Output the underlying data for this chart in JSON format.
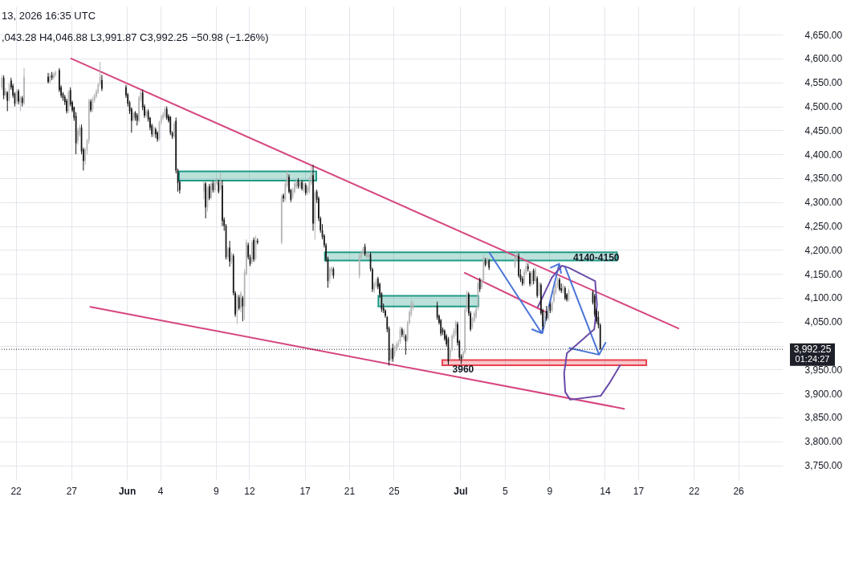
{
  "chart_data": {
    "type": "candlestick",
    "x": [
      "2026-05-20T18:00",
      "2026-05-20T22:00",
      "2026-05-21T02:00",
      "2026-05-21T06:00",
      "2026-05-21T10:00",
      "2026-05-21T14:00",
      "2026-05-21T18:00",
      "2026-05-21T22:00",
      "2026-05-22T02:00",
      "2026-05-22T06:00",
      "2026-05-22T10:00",
      "2026-05-22T14:00",
      "2026-05-22T18:00",
      "2026-05-24T22:00",
      "2026-05-25T02:00",
      "2026-05-25T06:00",
      "2026-05-25T10:00",
      "2026-05-25T14:00",
      "2026-05-25T22:00",
      "2026-05-26T02:00",
      "2026-05-26T06:00",
      "2026-05-26T10:00",
      "2026-05-26T14:00",
      "2026-05-26T18:00",
      "2026-05-26T22:00",
      "2026-05-27T02:00",
      "2026-05-27T06:00",
      "2026-05-27T10:00",
      "2026-05-27T14:00",
      "2026-05-27T18:00",
      "2026-05-27T22:00",
      "2026-05-28T02:00",
      "2026-05-28T06:00",
      "2026-05-28T10:00",
      "2026-05-28T14:00",
      "2026-05-28T18:00",
      "2026-05-28T22:00",
      "2026-05-29T02:00",
      "2026-05-29T06:00",
      "2026-05-29T10:00",
      "2026-05-29T14:00",
      "2026-05-29T18:00",
      "2026-05-31T22:00",
      "2026-06-01T02:00",
      "2026-06-01T06:00",
      "2026-06-01T10:00",
      "2026-06-01T14:00",
      "2026-06-01T18:00",
      "2026-06-01T22:00",
      "2026-06-02T02:00",
      "2026-06-02T06:00",
      "2026-06-02T10:00",
      "2026-06-02T14:00",
      "2026-06-02T18:00",
      "2026-06-02T22:00",
      "2026-06-03T02:00",
      "2026-06-03T06:00",
      "2026-06-03T10:00",
      "2026-06-03T14:00",
      "2026-06-03T18:00",
      "2026-06-03T22:00",
      "2026-06-04T02:00",
      "2026-06-04T06:00",
      "2026-06-04T10:00",
      "2026-06-04T14:00",
      "2026-06-04T18:00",
      "2026-06-04T22:00",
      "2026-06-05T02:00",
      "2026-06-05T06:00",
      "2026-06-05T10:00",
      "2026-06-05T14:00",
      "2026-06-05T18:00",
      "2026-06-07T22:00",
      "2026-06-08T02:00",
      "2026-06-08T06:00",
      "2026-06-08T10:00",
      "2026-06-08T14:00",
      "2026-06-08T18:00",
      "2026-06-08T22:00",
      "2026-06-09T02:00",
      "2026-06-09T06:00",
      "2026-06-09T10:00",
      "2026-06-09T14:00",
      "2026-06-09T18:00",
      "2026-06-09T22:00",
      "2026-06-10T02:00",
      "2026-06-10T06:00",
      "2026-06-10T10:00",
      "2026-06-10T14:00",
      "2026-06-10T18:00",
      "2026-06-10T22:00",
      "2026-06-11T02:00",
      "2026-06-11T06:00",
      "2026-06-11T10:00",
      "2026-06-11T14:00",
      "2026-06-11T18:00",
      "2026-06-11T22:00",
      "2026-06-12T02:00",
      "2026-06-12T06:00",
      "2026-06-12T10:00",
      "2026-06-12T14:00",
      "2026-06-12T18:00",
      "2026-06-14T22:00",
      "2026-06-15T02:00",
      "2026-06-15T06:00",
      "2026-06-15T10:00",
      "2026-06-15T14:00",
      "2026-06-15T18:00",
      "2026-06-15T22:00",
      "2026-06-16T02:00",
      "2026-06-16T06:00",
      "2026-06-16T10:00",
      "2026-06-16T14:00",
      "2026-06-16T18:00",
      "2026-06-16T22:00",
      "2026-06-17T02:00",
      "2026-06-17T06:00",
      "2026-06-17T10:00",
      "2026-06-17T14:00",
      "2026-06-17T18:00",
      "2026-06-17T22:00",
      "2026-06-18T02:00",
      "2026-06-18T06:00",
      "2026-06-18T10:00",
      "2026-06-18T14:00",
      "2026-06-18T18:00",
      "2026-06-18T22:00",
      "2026-06-19T02:00",
      "2026-06-19T06:00",
      "2026-06-19T10:00",
      "2026-06-19T14:00",
      "2026-06-21T22:00",
      "2026-06-22T02:00",
      "2026-06-22T06:00",
      "2026-06-22T10:00",
      "2026-06-22T14:00",
      "2026-06-22T18:00",
      "2026-06-22T22:00",
      "2026-06-23T02:00",
      "2026-06-23T06:00",
      "2026-06-23T10:00",
      "2026-06-23T14:00",
      "2026-06-23T18:00",
      "2026-06-23T22:00",
      "2026-06-24T02:00",
      "2026-06-24T06:00",
      "2026-06-24T10:00",
      "2026-06-24T14:00",
      "2026-06-24T18:00",
      "2026-06-24T22:00",
      "2026-06-25T02:00",
      "2026-06-25T06:00",
      "2026-06-25T10:00",
      "2026-06-25T14:00",
      "2026-06-25T18:00",
      "2026-06-25T22:00",
      "2026-06-26T02:00",
      "2026-06-26T06:00",
      "2026-06-26T10:00",
      "2026-06-26T14:00",
      "2026-06-26T18:00",
      "2026-06-28T22:00",
      "2026-06-29T02:00",
      "2026-06-29T06:00",
      "2026-06-29T10:00",
      "2026-06-29T14:00",
      "2026-06-29T18:00",
      "2026-06-29T22:00",
      "2026-06-30T02:00",
      "2026-06-30T06:00",
      "2026-06-30T10:00",
      "2026-06-30T14:00",
      "2026-06-30T18:00",
      "2026-06-30T22:00",
      "2026-07-01T02:00",
      "2026-07-01T06:00",
      "2026-07-01T10:00",
      "2026-07-01T14:00",
      "2026-07-01T18:00",
      "2026-07-01T22:00",
      "2026-07-02T02:00",
      "2026-07-02T06:00",
      "2026-07-02T10:00",
      "2026-07-02T14:00",
      "2026-07-02T18:00",
      "2026-07-02T22:00",
      "2026-07-03T02:00",
      "2026-07-03T06:00",
      "2026-07-03T10:00",
      "2026-07-03T14:00",
      "2026-07-05T22:00",
      "2026-07-06T02:00",
      "2026-07-06T06:00",
      "2026-07-06T10:00",
      "2026-07-06T14:00",
      "2026-07-06T18:00",
      "2026-07-06T22:00",
      "2026-07-07T02:00",
      "2026-07-07T06:00",
      "2026-07-07T10:00",
      "2026-07-07T14:00",
      "2026-07-07T18:00",
      "2026-07-07T22:00",
      "2026-07-08T02:00",
      "2026-07-08T06:00",
      "2026-07-08T10:00",
      "2026-07-08T14:00",
      "2026-07-08T18:00",
      "2026-07-08T22:00",
      "2026-07-09T02:00",
      "2026-07-09T06:00",
      "2026-07-09T10:00",
      "2026-07-09T14:00",
      "2026-07-09T18:00",
      "2026-07-09T22:00",
      "2026-07-10T02:00",
      "2026-07-10T06:00",
      "2026-07-10T10:00",
      "2026-07-10T14:00",
      "2026-07-10T18:00",
      "2026-07-12T22:00",
      "2026-07-13T02:00",
      "2026-07-13T06:00",
      "2026-07-13T10:00",
      "2026-07-13T14:00"
    ],
    "ohlc": [
      [
        4540,
        4566,
        4535,
        4560
      ],
      [
        4560,
        4565,
        4515,
        4523
      ],
      [
        4523,
        4538,
        4518,
        4532
      ],
      [
        4529,
        4532,
        4490,
        4512
      ],
      [
        4515,
        4550,
        4510,
        4546
      ],
      [
        4554,
        4560,
        4535,
        4540
      ],
      [
        4543,
        4547,
        4518,
        4523
      ],
      [
        4527,
        4530,
        4500,
        4506
      ],
      [
        4510,
        4536,
        4505,
        4532
      ],
      [
        4532,
        4536,
        4504,
        4510
      ],
      [
        4508,
        4522,
        4490,
        4518
      ],
      [
        4518,
        4522,
        4500,
        4507
      ],
      [
        4507,
        4580,
        4503,
        4562
      ],
      [
        4562,
        4570,
        4548,
        4551
      ],
      [
        4551,
        4570,
        4547,
        4565
      ],
      [
        4565,
        4572,
        4555,
        4560
      ],
      [
        4560,
        4572,
        4556,
        4568
      ],
      [
        4566,
        4575,
        4562,
        4571
      ],
      [
        4576,
        4580,
        4530,
        4534
      ],
      [
        4540,
        4544,
        4518,
        4523
      ],
      [
        4527,
        4530,
        4512,
        4518
      ],
      [
        4520,
        4524,
        4503,
        4509
      ],
      [
        4512,
        4516,
        4485,
        4490
      ],
      [
        4490,
        4534,
        4486,
        4530
      ],
      [
        4534,
        4540,
        4500,
        4504
      ],
      [
        4509,
        4512,
        4488,
        4492
      ],
      [
        4498,
        4500,
        4470,
        4476
      ],
      [
        4480,
        4488,
        4400,
        4423
      ],
      [
        4428,
        4455,
        4420,
        4450
      ],
      [
        4440,
        4462,
        4436,
        4456
      ],
      [
        4456,
        4462,
        4400,
        4406
      ],
      [
        4410,
        4414,
        4366,
        4386
      ],
      [
        4386,
        4414,
        4378,
        4410
      ],
      [
        4408,
        4432,
        4400,
        4428
      ],
      [
        4428,
        4516,
        4422,
        4512
      ],
      [
        4510,
        4515,
        4488,
        4492
      ],
      [
        4494,
        4520,
        4488,
        4515
      ],
      [
        4513,
        4527,
        4508,
        4523
      ],
      [
        4521,
        4536,
        4517,
        4532
      ],
      [
        4530,
        4550,
        4526,
        4546
      ],
      [
        4546,
        4593,
        4542,
        4562
      ],
      [
        4555,
        4566,
        4532,
        4537
      ],
      [
        4540,
        4545,
        4518,
        4523
      ],
      [
        4525,
        4528,
        4500,
        4506
      ],
      [
        4508,
        4512,
        4484,
        4490
      ],
      [
        4495,
        4498,
        4445,
        4470
      ],
      [
        4472,
        4490,
        4468,
        4486
      ],
      [
        4487,
        4490,
        4470,
        4476
      ],
      [
        4482,
        4486,
        4460,
        4470
      ],
      [
        4470,
        4522,
        4466,
        4518
      ],
      [
        4515,
        4533,
        4510,
        4529
      ],
      [
        4529,
        4535,
        4492,
        4498
      ],
      [
        4500,
        4504,
        4476,
        4481
      ],
      [
        4481,
        4494,
        4477,
        4490
      ],
      [
        4490,
        4494,
        4468,
        4473
      ],
      [
        4476,
        4478,
        4450,
        4456
      ],
      [
        4460,
        4464,
        4436,
        4442
      ],
      [
        4440,
        4460,
        4436,
        4456
      ],
      [
        4452,
        4456,
        4434,
        4442
      ],
      [
        4445,
        4448,
        4426,
        4431
      ],
      [
        4432,
        4470,
        4428,
        4467
      ],
      [
        4466,
        4482,
        4462,
        4478
      ],
      [
        4476,
        4488,
        4472,
        4483
      ],
      [
        4480,
        4500,
        4476,
        4495
      ],
      [
        4495,
        4500,
        4472,
        4476
      ],
      [
        4480,
        4484,
        4466,
        4470
      ],
      [
        4478,
        4480,
        4440,
        4445
      ],
      [
        4445,
        4448,
        4432,
        4437
      ],
      [
        4437,
        4468,
        4433,
        4464
      ],
      [
        4470,
        4477,
        4360,
        4366
      ],
      [
        4366,
        4370,
        4322,
        4340
      ],
      [
        4342,
        4346,
        4318,
        4325
      ],
      [
        4322,
        4344,
        4306,
        4339
      ],
      [
        4339,
        4342,
        4266,
        4289
      ],
      [
        4289,
        4334,
        4280,
        4330
      ],
      [
        4333,
        4338,
        4304,
        4308
      ],
      [
        4310,
        4344,
        4306,
        4339
      ],
      [
        4339,
        4344,
        4320,
        4325
      ],
      [
        4325,
        4346,
        4320,
        4342
      ],
      [
        4340,
        4350,
        4336,
        4344
      ],
      [
        4342,
        4347,
        4318,
        4322
      ],
      [
        4328,
        4362,
        4324,
        4345
      ],
      [
        4335,
        4346,
        4250,
        4261
      ],
      [
        4263,
        4268,
        4240,
        4250
      ],
      [
        4250,
        4254,
        4180,
        4185
      ],
      [
        4185,
        4206,
        4180,
        4202
      ],
      [
        4205,
        4219,
        4165,
        4176
      ],
      [
        4176,
        4195,
        4170,
        4190
      ],
      [
        4188,
        4192,
        4105,
        4110
      ],
      [
        4110,
        4114,
        4060,
        4065
      ],
      [
        4070,
        4108,
        4045,
        4104
      ],
      [
        4101,
        4106,
        4074,
        4078
      ],
      [
        4078,
        4114,
        4070,
        4109
      ],
      [
        4100,
        4104,
        4051,
        4082
      ],
      [
        4082,
        4160,
        4054,
        4154
      ],
      [
        4150,
        4222,
        4146,
        4216
      ],
      [
        4210,
        4215,
        4180,
        4185
      ],
      [
        4185,
        4190,
        4166,
        4171
      ],
      [
        4176,
        4220,
        4170,
        4216
      ],
      [
        4221,
        4226,
        4175,
        4180
      ],
      [
        4182,
        4230,
        4178,
        4221
      ],
      [
        4219,
        4224,
        4212,
        4216
      ],
      [
        4216,
        4316,
        4212,
        4311
      ],
      [
        4314,
        4318,
        4300,
        4308
      ],
      [
        4306,
        4344,
        4302,
        4339
      ],
      [
        4334,
        4367,
        4330,
        4361
      ],
      [
        4353,
        4358,
        4318,
        4322
      ],
      [
        4325,
        4328,
        4300,
        4305
      ],
      [
        4311,
        4330,
        4306,
        4325
      ],
      [
        4322,
        4344,
        4318,
        4339
      ],
      [
        4331,
        4348,
        4328,
        4342
      ],
      [
        4345,
        4350,
        4328,
        4333
      ],
      [
        4331,
        4346,
        4327,
        4342
      ],
      [
        4342,
        4346,
        4324,
        4328
      ],
      [
        4325,
        4344,
        4320,
        4339
      ],
      [
        4336,
        4340,
        4314,
        4319
      ],
      [
        4319,
        4336,
        4315,
        4331
      ],
      [
        4322,
        4352,
        4318,
        4345
      ],
      [
        4339,
        4375,
        4335,
        4356
      ],
      [
        4356,
        4378,
        4240,
        4255
      ],
      [
        4255,
        4325,
        4221,
        4320
      ],
      [
        4322,
        4326,
        4298,
        4305
      ],
      [
        4308,
        4312,
        4260,
        4266
      ],
      [
        4266,
        4270,
        4236,
        4241
      ],
      [
        4241,
        4254,
        4222,
        4227
      ],
      [
        4230,
        4233,
        4205,
        4210
      ],
      [
        4210,
        4214,
        4175,
        4180
      ],
      [
        4182,
        4186,
        4121,
        4135
      ],
      [
        4140,
        4164,
        4130,
        4160
      ],
      [
        4155,
        4166,
        4146,
        4163
      ],
      [
        4160,
        4164,
        4140,
        4146
      ],
      [
        4146,
        4192,
        4140,
        4188
      ],
      [
        4185,
        4198,
        4180,
        4194
      ],
      [
        4193,
        4207,
        4190,
        4202
      ],
      [
        4207,
        4213,
        4187,
        4191
      ],
      [
        4185,
        4197,
        4180,
        4194
      ],
      [
        4185,
        4195,
        4182,
        4191
      ],
      [
        4191,
        4195,
        4155,
        4160
      ],
      [
        4160,
        4163,
        4112,
        4118
      ],
      [
        4115,
        4133,
        4110,
        4129
      ],
      [
        4124,
        4140,
        4120,
        4135
      ],
      [
        4140,
        4144,
        4118,
        4123
      ],
      [
        4129,
        4132,
        4100,
        4107
      ],
      [
        4109,
        4112,
        4070,
        4076
      ],
      [
        4079,
        4088,
        4068,
        4073
      ],
      [
        4073,
        4076,
        4058,
        4062
      ],
      [
        4059,
        4062,
        4028,
        4034
      ],
      [
        4036,
        4040,
        3958,
        3969
      ],
      [
        3972,
        3996,
        3966,
        3992
      ],
      [
        3995,
        4004,
        3966,
        3972
      ],
      [
        3981,
        4001,
        3976,
        3997
      ],
      [
        3993,
        4008,
        3988,
        4003
      ],
      [
        4000,
        4012,
        3995,
        4006
      ],
      [
        4008,
        4040,
        4004,
        4034
      ],
      [
        4034,
        4038,
        4018,
        4023
      ],
      [
        4017,
        4035,
        4012,
        4031
      ],
      [
        4020,
        4024,
        3981,
        4009
      ],
      [
        4012,
        4052,
        4008,
        4048
      ],
      [
        4048,
        4075,
        4044,
        4070
      ],
      [
        4065,
        4096,
        4060,
        4090
      ],
      [
        4078,
        4092,
        4074,
        4087
      ],
      [
        4084,
        4092,
        4054,
        4059
      ],
      [
        4062,
        4065,
        4044,
        4048
      ],
      [
        4053,
        4056,
        4020,
        4025
      ],
      [
        4034,
        4038,
        4022,
        4028
      ],
      [
        4031,
        4034,
        4010,
        4014
      ],
      [
        4020,
        4024,
        3998,
        4003
      ],
      [
        4014,
        4018,
        3960,
        3967
      ],
      [
        3975,
        3996,
        3970,
        3992
      ],
      [
        3992,
        4024,
        3988,
        4020
      ],
      [
        4018,
        4036,
        4014,
        4031
      ],
      [
        4025,
        4052,
        4020,
        4048
      ],
      [
        4045,
        4050,
        4000,
        4006
      ],
      [
        4009,
        4012,
        3970,
        3975
      ],
      [
        3978,
        3982,
        3962,
        3972
      ],
      [
        3975,
        3990,
        3970,
        3986
      ],
      [
        3986,
        4080,
        3982,
        4075
      ],
      [
        4075,
        4115,
        4070,
        4110
      ],
      [
        4108,
        4112,
        4062,
        4068
      ],
      [
        4068,
        4072,
        4030,
        4034
      ],
      [
        4040,
        4060,
        4035,
        4057
      ],
      [
        4052,
        4072,
        4048,
        4068
      ],
      [
        4060,
        4080,
        4056,
        4076
      ],
      [
        4079,
        4134,
        4074,
        4130
      ],
      [
        4138,
        4142,
        4112,
        4118
      ],
      [
        4122,
        4140,
        4118,
        4135
      ],
      [
        4137,
        4190,
        4132,
        4183
      ],
      [
        4177,
        4183,
        4165,
        4169
      ],
      [
        4172,
        4185,
        4168,
        4180
      ],
      [
        4177,
        4181,
        4158,
        4163
      ],
      [
        4166,
        4190,
        4162,
        4185
      ],
      [
        4180,
        4199,
        4176,
        4194
      ],
      [
        4188,
        4193,
        4142,
        4146
      ],
      [
        4148,
        4160,
        4133,
        4138
      ],
      [
        4140,
        4145,
        4125,
        4129
      ],
      [
        4130,
        4160,
        4126,
        4155
      ],
      [
        4152,
        4175,
        4148,
        4166
      ],
      [
        4166,
        4172,
        4155,
        4160
      ],
      [
        4152,
        4156,
        4124,
        4129
      ],
      [
        4129,
        4156,
        4125,
        4152
      ],
      [
        4157,
        4161,
        4128,
        4135
      ],
      [
        4135,
        4164,
        4131,
        4160
      ],
      [
        4141,
        4145,
        4100,
        4104
      ],
      [
        4107,
        4133,
        4103,
        4129
      ],
      [
        4127,
        4131,
        4064,
        4068
      ],
      [
        4073,
        4077,
        4034,
        4040
      ],
      [
        4042,
        4072,
        4038,
        4068
      ],
      [
        4072,
        4083,
        4052,
        4057
      ],
      [
        4057,
        4083,
        4053,
        4079
      ],
      [
        4087,
        4091,
        4068,
        4073
      ],
      [
        4073,
        4094,
        4069,
        4090
      ],
      [
        4093,
        4120,
        4089,
        4115
      ],
      [
        4110,
        4132,
        4106,
        4127
      ],
      [
        4125,
        4143,
        4120,
        4138
      ],
      [
        4138,
        4142,
        4114,
        4118
      ],
      [
        4120,
        4130,
        4110,
        4115
      ],
      [
        4112,
        4128,
        4108,
        4124
      ],
      [
        4120,
        4124,
        4095,
        4099
      ],
      [
        4107,
        4110,
        4092,
        4096
      ],
      [
        4096,
        4119,
        4092,
        4115
      ],
      [
        4112,
        4116,
        4086,
        4090
      ],
      [
        4104,
        4108,
        4060,
        4065
      ],
      [
        4073,
        4077,
        4046,
        4051
      ],
      [
        4060,
        4072,
        4036,
        4043
      ],
      [
        4043.28,
        4046.88,
        3991.87,
        3992.25
      ]
    ],
    "colors": [
      "#b4b4b4",
      "#161616",
      "#b4b4b4",
      "#161616",
      "#b4b4b4",
      "#161616",
      "#161616",
      "#161616",
      "#b4b4b4",
      "#161616",
      "#b4b4b4",
      "#161616",
      "#b4b4b4",
      "#161616",
      "#b4b4b4",
      "#161616",
      "#b4b4b4",
      "#b4b4b4",
      "#161616",
      "#161616",
      "#161616",
      "#161616",
      "#161616",
      "#b4b4b4",
      "#161616",
      "#161616",
      "#161616",
      "#161616",
      "#b4b4b4",
      "#b4b4b4",
      "#161616",
      "#161616",
      "#b4b4b4",
      "#b4b4b4",
      "#b4b4b4",
      "#161616",
      "#b4b4b4",
      "#b4b4b4",
      "#b4b4b4",
      "#b4b4b4",
      "#b4b4b4",
      "#161616",
      "#161616",
      "#161616",
      "#161616",
      "#161616",
      "#b4b4b4",
      "#161616",
      "#161616",
      "#b4b4b4",
      "#b4b4b4",
      "#161616",
      "#161616",
      "#b4b4b4",
      "#161616",
      "#161616",
      "#161616",
      "#b4b4b4",
      "#161616",
      "#161616",
      "#b4b4b4",
      "#b4b4b4",
      "#b4b4b4",
      "#b4b4b4",
      "#161616",
      "#161616",
      "#161616",
      "#161616",
      "#b4b4b4",
      "#161616",
      "#161616",
      "#161616",
      "#b4b4b4",
      "#161616",
      "#b4b4b4",
      "#161616",
      "#b4b4b4",
      "#161616",
      "#b4b4b4",
      "#b4b4b4",
      "#161616",
      "#b4b4b4",
      "#161616",
      "#161616",
      "#161616",
      "#b4b4b4",
      "#161616",
      "#b4b4b4",
      "#161616",
      "#161616",
      "#b4b4b4",
      "#161616",
      "#b4b4b4",
      "#161616",
      "#b4b4b4",
      "#b4b4b4",
      "#161616",
      "#161616",
      "#b4b4b4",
      "#161616",
      "#b4b4b4",
      "#161616",
      "#b4b4b4",
      "#161616",
      "#b4b4b4",
      "#b4b4b4",
      "#161616",
      "#161616",
      "#b4b4b4",
      "#b4b4b4",
      "#b4b4b4",
      "#161616",
      "#b4b4b4",
      "#161616",
      "#b4b4b4",
      "#161616",
      "#b4b4b4",
      "#b4b4b4",
      "#b4b4b4",
      "#161616",
      "#b4b4b4",
      "#161616",
      "#161616",
      "#161616",
      "#161616",
      "#161616",
      "#161616",
      "#161616",
      "#b4b4b4",
      "#b4b4b4",
      "#161616",
      "#b4b4b4",
      "#b4b4b4",
      "#b4b4b4",
      "#161616",
      "#b4b4b4",
      "#b4b4b4",
      "#161616",
      "#161616",
      "#b4b4b4",
      "#b4b4b4",
      "#161616",
      "#161616",
      "#161616",
      "#161616",
      "#161616",
      "#161616",
      "#161616",
      "#b4b4b4",
      "#161616",
      "#b4b4b4",
      "#b4b4b4",
      "#b4b4b4",
      "#b4b4b4",
      "#161616",
      "#b4b4b4",
      "#161616",
      "#b4b4b4",
      "#b4b4b4",
      "#b4b4b4",
      "#b4b4b4",
      "#161616",
      "#161616",
      "#161616",
      "#161616",
      "#161616",
      "#161616",
      "#161616",
      "#b4b4b4",
      "#b4b4b4",
      "#b4b4b4",
      "#b4b4b4",
      "#161616",
      "#161616",
      "#161616",
      "#b4b4b4",
      "#b4b4b4",
      "#b4b4b4",
      "#161616",
      "#161616",
      "#b4b4b4",
      "#b4b4b4",
      "#b4b4b4",
      "#b4b4b4",
      "#161616",
      "#b4b4b4",
      "#b4b4b4",
      "#161616",
      "#b4b4b4",
      "#161616",
      "#b4b4b4",
      "#b4b4b4",
      "#161616",
      "#161616",
      "#161616",
      "#b4b4b4",
      "#b4b4b4",
      "#161616",
      "#161616",
      "#b4b4b4",
      "#161616",
      "#b4b4b4",
      "#161616",
      "#b4b4b4",
      "#161616",
      "#161616",
      "#b4b4b4",
      "#161616",
      "#b4b4b4",
      "#161616",
      "#b4b4b4",
      "#b4b4b4",
      "#b4b4b4",
      "#b4b4b4",
      "#161616",
      "#161616",
      "#b4b4b4",
      "#161616",
      "#161616",
      "#b4b4b4",
      "#161616",
      "#161616",
      "#161616",
      "#161616",
      "#161616"
    ],
    "series": [
      {
        "type": "line",
        "color": "#1f9a85",
        "x": [
          "2026-06-05T16:30",
          "2026-06-18T01:00"
        ],
        "values": [
          null,
          null
        ],
        "lower": [
          4345,
          4345
        ],
        "upper": [
          4364,
          4364
        ]
      },
      {
        "type": "line",
        "color": "#1f9a85",
        "x": [
          "2026-06-18T19:30",
          "2026-07-15T02:00"
        ],
        "values": [
          null,
          null
        ],
        "lower": [
          4178,
          4178
        ],
        "upper": [
          4195,
          4195
        ]
      },
      {
        "type": "line",
        "color": "#1f9a85",
        "x": [
          "2026-06-23T15:00",
          "2026-07-02T15:00"
        ],
        "values": [
          null,
          null
        ],
        "lower": [
          4082,
          4082
        ],
        "upper": [
          4104,
          4104
        ]
      },
      {
        "type": "line",
        "color": "#e8414e",
        "x": [
          "2026-06-29T09:00",
          "2026-07-17T17:30"
        ],
        "values": [
          null,
          null
        ],
        "lower": [
          3959,
          3959
        ],
        "upper": [
          3970,
          3970
        ]
      },
      {
        "type": "line",
        "color": "#d6457f",
        "x": [
          "2026-05-26T23:30",
          "2026-07-20T15:00"
        ],
        "values": [
          4600,
          4036
        ]
      },
      {
        "type": "line",
        "color": "#d6457f",
        "x": [
          "2026-05-28T17:00",
          "2026-07-15T17:30"
        ],
        "values": [
          4081,
          3868
        ]
      },
      {
        "type": "line",
        "color": "#d6457f",
        "x": [
          "2026-07-01T09:30",
          "2026-07-08T21:00"
        ],
        "values": [
          4152,
          4068
        ]
      },
      {
        "type": "line",
        "color": "#4a74d8",
        "x": [
          "2026-07-03T15:00",
          "2026-07-08T07:30",
          "2026-07-07T11:00",
          "2026-07-08T07:30",
          "2026-07-08T15:00"
        ],
        "values": [
          4194,
          4026,
          4034,
          4026,
          4054
        ]
      },
      {
        "type": "line",
        "color": "#4a74d8",
        "x": [
          "2026-07-08T09:00",
          "2026-07-09T21:30",
          "2026-07-09T03:30",
          "2026-07-09T21:30",
          "2026-07-10T01:30"
        ],
        "values": [
          4026,
          4171,
          4163,
          4171,
          4152
        ]
      },
      {
        "type": "line",
        "color": "#4a74d8",
        "x": [
          "2026-07-10T09:30",
          "2026-07-13T11:30",
          "2026-07-10T19:30",
          "2026-07-13T11:30",
          "2026-07-14T01:30"
        ],
        "values": [
          4166,
          3981,
          3995,
          3981,
          4006
        ]
      },
      {
        "type": "line",
        "color": "#6a4ca8",
        "x": [
          "2026-07-07T23:30",
          "2026-07-09T05:30",
          "2026-07-10T03:00",
          "2026-07-10T17:30",
          "2026-07-13T03:00",
          "2026-07-13T07:00",
          "2026-07-13T01:00",
          "2026-07-10T14:00",
          "2026-07-10T08:00",
          "2026-07-10T10:30",
          "2026-07-10T21:00",
          "2026-07-13T15:00",
          "2026-07-14T11:30",
          "2026-07-15T09:00"
        ],
        "values": [
          4081,
          4142,
          4167,
          4163,
          4135,
          4085,
          4034,
          3984,
          3942,
          3903,
          3887,
          3895,
          3924,
          3959
        ]
      }
    ],
    "ref_lines": [
      {
        "axis": "y",
        "value": 3992.25,
        "label": "3,992.25",
        "color": "#1e2029",
        "line_style": "dotted"
      }
    ],
    "annotations": [
      "13, 2026 16:35 UTC",
      ",043.28 H4,046.88 L3,991.87 C3,992.25 −50.98 (−1.26%)",
      "01:24:27",
      {
        "text": "4140-4150",
        "x": "2026-07-13T05:30",
        "y": 4195
      },
      {
        "text": "3960",
        "x": "2026-07-01T06:00",
        "y": 3962
      }
    ],
    "xlim": [
      "2026-05-20T14:00",
      "2026-07-30T00:00"
    ],
    "ylim": [
      3719,
      4709
    ],
    "xticks": [
      {
        "value": "2026-05-22",
        "label": "22"
      },
      {
        "value": "2026-05-27",
        "label": "27"
      },
      {
        "value": "2026-06-01",
        "label": "Jun"
      },
      {
        "value": "2026-06-04",
        "label": "4"
      },
      {
        "value": "2026-06-09",
        "label": "9"
      },
      {
        "value": "2026-06-12",
        "label": "12"
      },
      {
        "value": "2026-06-17",
        "label": "17"
      },
      {
        "value": "2026-06-21",
        "label": "21"
      },
      {
        "value": "2026-06-25",
        "label": "25"
      },
      {
        "value": "2026-07-01",
        "label": "Jul"
      },
      {
        "value": "2026-07-05",
        "label": "5"
      },
      {
        "value": "2026-07-09",
        "label": "9"
      },
      {
        "value": "2026-07-14",
        "label": "14"
      },
      {
        "value": "2026-07-17",
        "label": "17"
      },
      {
        "value": "2026-07-22",
        "label": "22"
      },
      {
        "value": "2026-07-26",
        "label": "26"
      }
    ],
    "yticks": [
      {
        "value": 3750,
        "label": "3,750.00"
      },
      {
        "value": 3800,
        "label": "3,800.00"
      },
      {
        "value": 3850,
        "label": "3,850.00"
      },
      {
        "value": 3900,
        "label": "3,900.00"
      },
      {
        "value": 3950,
        "label": "3,950.00"
      },
      {
        "value": 4000,
        "label": null
      },
      {
        "value": 4050,
        "label": "4,050.00"
      },
      {
        "value": 4100,
        "label": "4,100.00"
      },
      {
        "value": 4150,
        "label": "4,150.00"
      },
      {
        "value": 4200,
        "label": "4,200.00"
      },
      {
        "value": 4250,
        "label": "4,250.00"
      },
      {
        "value": 4300,
        "label": "4,300.00"
      },
      {
        "value": 4350,
        "label": "4,350.00"
      },
      {
        "value": 4400,
        "label": "4,400.00"
      },
      {
        "value": 4450,
        "label": "4,450.00"
      },
      {
        "value": 4500,
        "label": "4,500.00"
      },
      {
        "value": 4550,
        "label": "4,550.00"
      },
      {
        "value": 4600,
        "label": "4,600.00"
      },
      {
        "value": 4650,
        "label": "4,650.00"
      }
    ],
    "grid": true
  }
}
